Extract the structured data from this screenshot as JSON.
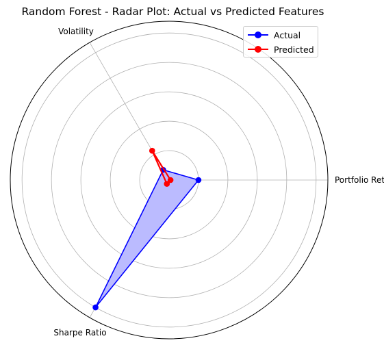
{
  "chart_data": {
    "type": "radar",
    "title": "Random Forest - Radar Plot: Actual vs Predicted Features",
    "axes": [
      "Portfolio Return",
      "Volatility",
      "Sharpe Ratio"
    ],
    "rlim": [
      0,
      1.08
    ],
    "rings": [
      0.2,
      0.4,
      0.6,
      0.8,
      1.0
    ],
    "grid": true,
    "legend_position": "top-right",
    "series": [
      {
        "name": "Actual",
        "values": [
          0.2,
          0.08,
          1.0
        ],
        "color": "#0000ff",
        "fill": true,
        "fill_color": "#bbbbff"
      },
      {
        "name": "Predicted",
        "values": [
          0.01,
          0.23,
          0.03
        ],
        "color": "#ff0000",
        "fill": false
      }
    ]
  }
}
